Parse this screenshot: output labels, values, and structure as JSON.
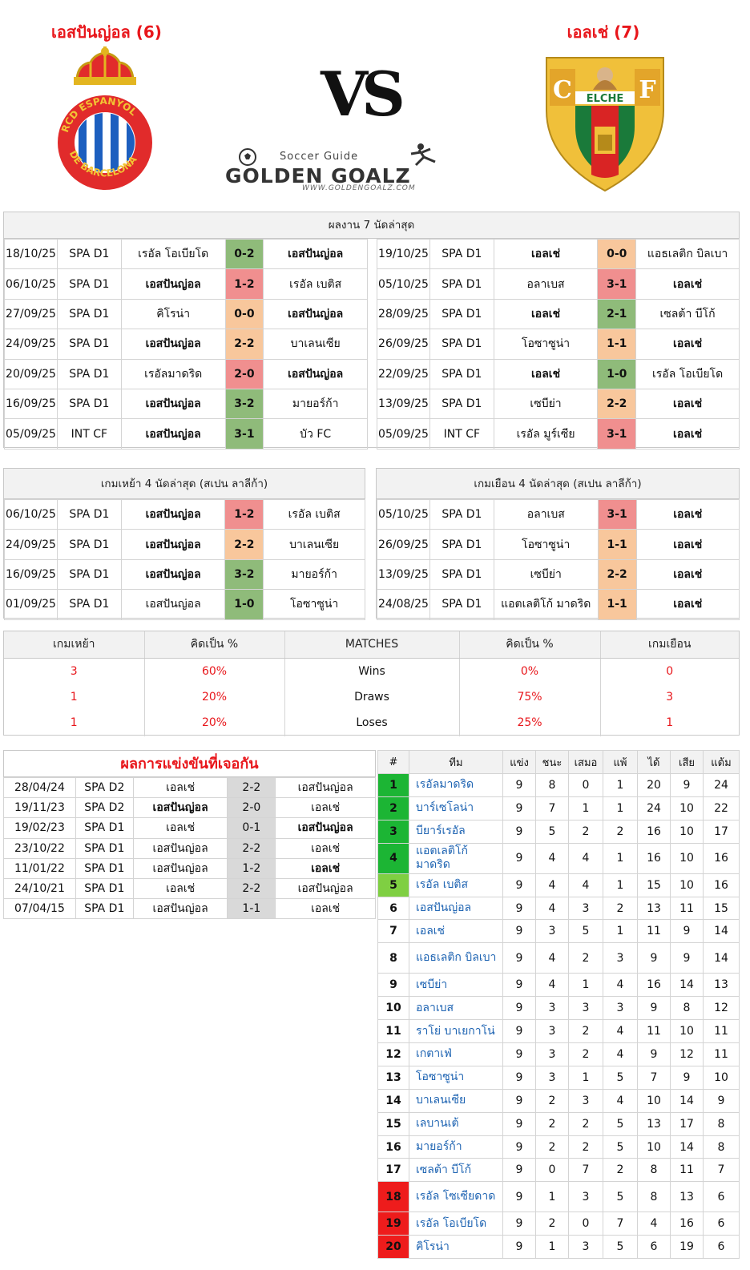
{
  "header": {
    "home_team": "เอสปันญ่อล (6)",
    "away_team": "เอลเช่ (7)",
    "vs": "VS",
    "brand_tagline": "Soccer Guide",
    "brand_name": "GOLDEN GOALZ",
    "brand_url": "WWW.GOLDENGOALZ.COM",
    "home_crest_text": "RCD ESPANYOL DE BARCELONA",
    "away_crest_text": "ELCHE"
  },
  "recent": {
    "title": "ผลงาน 7 นัดล่าสุด",
    "home": [
      {
        "date": "18/10/25",
        "comp": "SPA D1",
        "home": "เรอัล โอเบียโด",
        "score": "0-2",
        "away": "เอสปันญ่อล",
        "bold": "away",
        "color": "g"
      },
      {
        "date": "06/10/25",
        "comp": "SPA D1",
        "home": "เอสปันญ่อล",
        "score": "1-2",
        "away": "เรอัล เบติส",
        "bold": "home",
        "color": "r"
      },
      {
        "date": "27/09/25",
        "comp": "SPA D1",
        "home": "คิโรน่า",
        "score": "0-0",
        "away": "เอสปันญ่อล",
        "bold": "away",
        "color": "o"
      },
      {
        "date": "24/09/25",
        "comp": "SPA D1",
        "home": "เอสปันญ่อล",
        "score": "2-2",
        "away": "บาเลนเซีย",
        "bold": "home",
        "color": "o"
      },
      {
        "date": "20/09/25",
        "comp": "SPA D1",
        "home": "เรอัลมาดริด",
        "score": "2-0",
        "away": "เอสปันญ่อล",
        "bold": "away",
        "color": "r"
      },
      {
        "date": "16/09/25",
        "comp": "SPA D1",
        "home": "เอสปันญ่อล",
        "score": "3-2",
        "away": "มายอร์ก้า",
        "bold": "home",
        "color": "g"
      },
      {
        "date": "05/09/25",
        "comp": "INT CF",
        "home": "เอสปันญ่อล",
        "score": "3-1",
        "away": "บัว FC",
        "bold": "home",
        "color": "g"
      }
    ],
    "away": [
      {
        "date": "19/10/25",
        "comp": "SPA D1",
        "home": "เอลเช่",
        "score": "0-0",
        "away": "แอธเลติก บิลเบา",
        "bold": "home",
        "color": "o"
      },
      {
        "date": "05/10/25",
        "comp": "SPA D1",
        "home": "อลาเบส",
        "score": "3-1",
        "away": "เอลเช่",
        "bold": "away",
        "color": "r"
      },
      {
        "date": "28/09/25",
        "comp": "SPA D1",
        "home": "เอลเช่",
        "score": "2-1",
        "away": "เซลต้า บีโก้",
        "bold": "home",
        "color": "g"
      },
      {
        "date": "26/09/25",
        "comp": "SPA D1",
        "home": "โอซาซูน่า",
        "score": "1-1",
        "away": "เอลเช่",
        "bold": "away",
        "color": "o"
      },
      {
        "date": "22/09/25",
        "comp": "SPA D1",
        "home": "เอลเช่",
        "score": "1-0",
        "away": "เรอัล โอเบียโด",
        "bold": "home",
        "color": "g"
      },
      {
        "date": "13/09/25",
        "comp": "SPA D1",
        "home": "เซบีย่า",
        "score": "2-2",
        "away": "เอลเช่",
        "bold": "away",
        "color": "o"
      },
      {
        "date": "05/09/25",
        "comp": "INT CF",
        "home": "เรอัล มูร์เซีย",
        "score": "3-1",
        "away": "เอลเช่",
        "bold": "away",
        "color": "r"
      }
    ]
  },
  "venue_form": {
    "home_title": "เกมเหย้า 4 นัดล่าสุด (สเปน ลาลีก้า)",
    "away_title": "เกมเยือน 4 นัดล่าสุด (สเปน ลาลีก้า)",
    "home": [
      {
        "date": "06/10/25",
        "comp": "SPA D1",
        "home": "เอสปันญ่อล",
        "score": "1-2",
        "away": "เรอัล เบติส",
        "bold": "home",
        "color": "r"
      },
      {
        "date": "24/09/25",
        "comp": "SPA D1",
        "home": "เอสปันญ่อล",
        "score": "2-2",
        "away": "บาเลนเซีย",
        "bold": "home",
        "color": "o"
      },
      {
        "date": "16/09/25",
        "comp": "SPA D1",
        "home": "เอสปันญ่อล",
        "score": "3-2",
        "away": "มายอร์ก้า",
        "bold": "home",
        "color": "g"
      },
      {
        "date": "01/09/25",
        "comp": "SPA D1",
        "home": "เอสปันญ่อล",
        "score": "1-0",
        "away": "โอซาซูน่า",
        "bold": "none",
        "color": "g"
      }
    ],
    "away": [
      {
        "date": "05/10/25",
        "comp": "SPA D1",
        "home": "อลาเบส",
        "score": "3-1",
        "away": "เอลเช่",
        "bold": "away",
        "color": "r"
      },
      {
        "date": "26/09/25",
        "comp": "SPA D1",
        "home": "โอซาซูน่า",
        "score": "1-1",
        "away": "เอลเช่",
        "bold": "away",
        "color": "o"
      },
      {
        "date": "13/09/25",
        "comp": "SPA D1",
        "home": "เซบีย่า",
        "score": "2-2",
        "away": "เอลเช่",
        "bold": "away",
        "color": "o"
      },
      {
        "date": "24/08/25",
        "comp": "SPA D1",
        "home": "แอตเลติโก้ มาดริด",
        "score": "1-1",
        "away": "เอลเช่",
        "bold": "away",
        "color": "o"
      }
    ]
  },
  "stats": {
    "headers": [
      "เกมเหย้า",
      "คิดเป็น %",
      "MATCHES",
      "คิดเป็น %",
      "เกมเยือน"
    ],
    "rows": [
      {
        "home_n": "3",
        "home_pct": "60%",
        "label": "Wins",
        "away_pct": "0%",
        "away_n": "0"
      },
      {
        "home_n": "1",
        "home_pct": "20%",
        "label": "Draws",
        "away_pct": "75%",
        "away_n": "3"
      },
      {
        "home_n": "1",
        "home_pct": "20%",
        "label": "Loses",
        "away_pct": "25%",
        "away_n": "1"
      }
    ]
  },
  "h2h": {
    "title": "ผลการแข่งขันที่เจอกัน",
    "rows": [
      {
        "date": "28/04/24",
        "comp": "SPA D2",
        "home": "เอลเช่",
        "score": "2-2",
        "away": "เอสปันญ่อล",
        "bold": "none"
      },
      {
        "date": "19/11/23",
        "comp": "SPA D2",
        "home": "เอสปันญ่อล",
        "score": "2-0",
        "away": "เอลเช่",
        "bold": "home"
      },
      {
        "date": "19/02/23",
        "comp": "SPA D1",
        "home": "เอลเช่",
        "score": "0-1",
        "away": "เอสปันญ่อล",
        "bold": "away"
      },
      {
        "date": "23/10/22",
        "comp": "SPA D1",
        "home": "เอสปันญ่อล",
        "score": "2-2",
        "away": "เอลเช่",
        "bold": "none"
      },
      {
        "date": "11/01/22",
        "comp": "SPA D1",
        "home": "เอสปันญ่อล",
        "score": "1-2",
        "away": "เอลเช่",
        "bold": "away"
      },
      {
        "date": "24/10/21",
        "comp": "SPA D1",
        "home": "เอลเช่",
        "score": "2-2",
        "away": "เอสปันญ่อล",
        "bold": "none"
      },
      {
        "date": "07/04/15",
        "comp": "SPA D1",
        "home": "เอสปันญ่อล",
        "score": "1-1",
        "away": "เอลเช่",
        "bold": "none"
      }
    ]
  },
  "standings": {
    "headers": [
      "#",
      "ทีม",
      "แข่ง",
      "ชนะ",
      "เสมอ",
      "แพ้",
      "ได้",
      "เสีย",
      "แต้ม"
    ],
    "rows": [
      {
        "pos": "1",
        "team": "เรอัลมาดริด",
        "p": "9",
        "w": "8",
        "d": "0",
        "l": "1",
        "gf": "20",
        "ga": "9",
        "pts": "24",
        "zone": "green",
        "tall": false
      },
      {
        "pos": "2",
        "team": "บาร์เซโลน่า",
        "p": "9",
        "w": "7",
        "d": "1",
        "l": "1",
        "gf": "24",
        "ga": "10",
        "pts": "22",
        "zone": "green",
        "tall": false
      },
      {
        "pos": "3",
        "team": "บียาร์เรอัล",
        "p": "9",
        "w": "5",
        "d": "2",
        "l": "2",
        "gf": "16",
        "ga": "10",
        "pts": "17",
        "zone": "green",
        "tall": false
      },
      {
        "pos": "4",
        "team": "แอตเลติโก้ มาดริด",
        "p": "9",
        "w": "4",
        "d": "4",
        "l": "1",
        "gf": "16",
        "ga": "10",
        "pts": "16",
        "zone": "green",
        "tall": true
      },
      {
        "pos": "5",
        "team": "เรอัล เบติส",
        "p": "9",
        "w": "4",
        "d": "4",
        "l": "1",
        "gf": "15",
        "ga": "10",
        "pts": "16",
        "zone": "lgreen",
        "tall": false
      },
      {
        "pos": "6",
        "team": "เอสปันญ่อล",
        "p": "9",
        "w": "4",
        "d": "3",
        "l": "2",
        "gf": "13",
        "ga": "11",
        "pts": "15",
        "zone": "none",
        "tall": false
      },
      {
        "pos": "7",
        "team": "เอลเช่",
        "p": "9",
        "w": "3",
        "d": "5",
        "l": "1",
        "gf": "11",
        "ga": "9",
        "pts": "14",
        "zone": "none",
        "tall": false
      },
      {
        "pos": "8",
        "team": "แอธเลติก บิลเบา",
        "p": "9",
        "w": "4",
        "d": "2",
        "l": "3",
        "gf": "9",
        "ga": "9",
        "pts": "14",
        "zone": "none",
        "tall": true
      },
      {
        "pos": "9",
        "team": "เซบีย่า",
        "p": "9",
        "w": "4",
        "d": "1",
        "l": "4",
        "gf": "16",
        "ga": "14",
        "pts": "13",
        "zone": "none",
        "tall": false
      },
      {
        "pos": "10",
        "team": "อลาเบส",
        "p": "9",
        "w": "3",
        "d": "3",
        "l": "3",
        "gf": "9",
        "ga": "8",
        "pts": "12",
        "zone": "none",
        "tall": false
      },
      {
        "pos": "11",
        "team": "ราโย่ บาเยกาโน่",
        "p": "9",
        "w": "3",
        "d": "2",
        "l": "4",
        "gf": "11",
        "ga": "10",
        "pts": "11",
        "zone": "none",
        "tall": false
      },
      {
        "pos": "12",
        "team": "เกตาเฟ่",
        "p": "9",
        "w": "3",
        "d": "2",
        "l": "4",
        "gf": "9",
        "ga": "12",
        "pts": "11",
        "zone": "none",
        "tall": false
      },
      {
        "pos": "13",
        "team": "โอซาซูน่า",
        "p": "9",
        "w": "3",
        "d": "1",
        "l": "5",
        "gf": "7",
        "ga": "9",
        "pts": "10",
        "zone": "none",
        "tall": false
      },
      {
        "pos": "14",
        "team": "บาเลนเซีย",
        "p": "9",
        "w": "2",
        "d": "3",
        "l": "4",
        "gf": "10",
        "ga": "14",
        "pts": "9",
        "zone": "none",
        "tall": false
      },
      {
        "pos": "15",
        "team": "เลบานเต้",
        "p": "9",
        "w": "2",
        "d": "2",
        "l": "5",
        "gf": "13",
        "ga": "17",
        "pts": "8",
        "zone": "none",
        "tall": false
      },
      {
        "pos": "16",
        "team": "มายอร์ก้า",
        "p": "9",
        "w": "2",
        "d": "2",
        "l": "5",
        "gf": "10",
        "ga": "14",
        "pts": "8",
        "zone": "none",
        "tall": false
      },
      {
        "pos": "17",
        "team": "เซลต้า บีโก้",
        "p": "9",
        "w": "0",
        "d": "7",
        "l": "2",
        "gf": "8",
        "ga": "11",
        "pts": "7",
        "zone": "none",
        "tall": false
      },
      {
        "pos": "18",
        "team": "เรอัล โซเซียดาด",
        "p": "9",
        "w": "1",
        "d": "3",
        "l": "5",
        "gf": "8",
        "ga": "13",
        "pts": "6",
        "zone": "red",
        "tall": true
      },
      {
        "pos": "19",
        "team": "เรอัล โอเบียโด",
        "p": "9",
        "w": "2",
        "d": "0",
        "l": "7",
        "gf": "4",
        "ga": "16",
        "pts": "6",
        "zone": "red",
        "tall": false
      },
      {
        "pos": "20",
        "team": "คิโรน่า",
        "p": "9",
        "w": "1",
        "d": "3",
        "l": "5",
        "gf": "6",
        "ga": "19",
        "pts": "6",
        "zone": "red",
        "tall": false
      }
    ]
  }
}
